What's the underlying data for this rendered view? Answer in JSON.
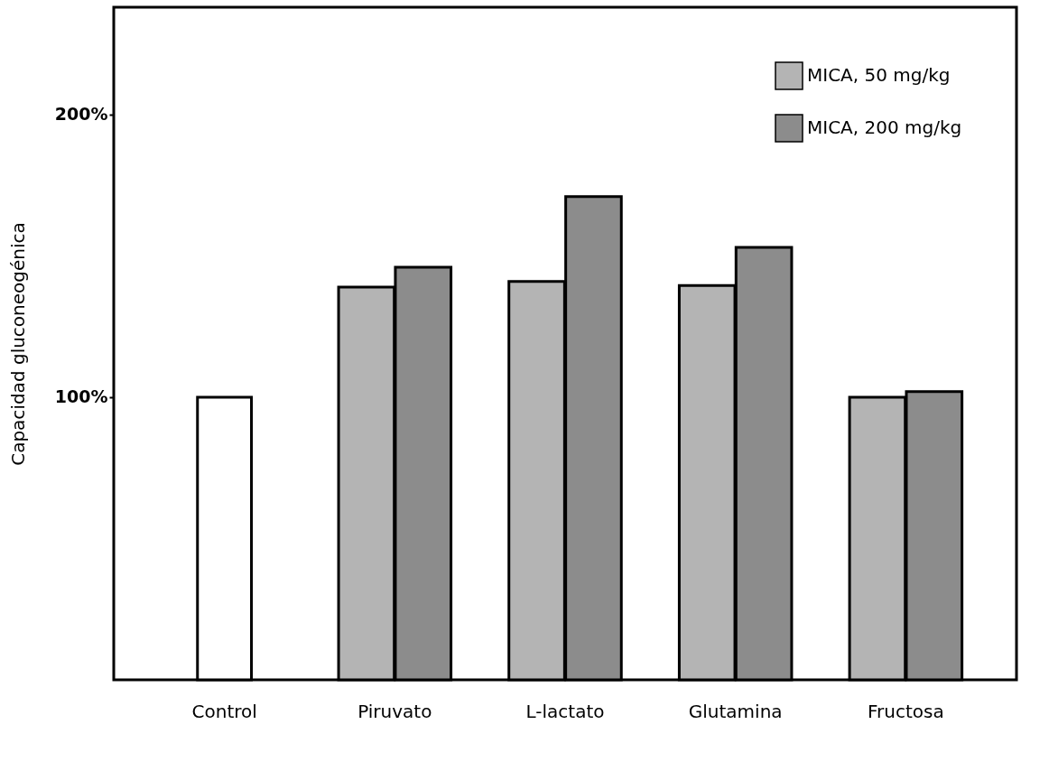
{
  "chart_data": {
    "type": "bar",
    "ylabel": "Capacidad gluconeogénica",
    "categories": [
      "Control",
      "Piruvato",
      "L-lactato",
      "Glutamina",
      "Fructosa"
    ],
    "series": [
      {
        "color": "#ffffff",
        "values": [
          100,
          null,
          null,
          null,
          null
        ]
      },
      {
        "name": "MICA, 50 mg/kg",
        "color": "#b4b4b4",
        "values": [
          null,
          139,
          141,
          139.5,
          100
        ]
      },
      {
        "name": "MICA, 200 mg/kg",
        "color": "#8c8c8c",
        "values": [
          null,
          146,
          171,
          153,
          102
        ]
      }
    ],
    "ylim": [
      0,
      238
    ],
    "yticks": [
      {
        "value": 100,
        "label": "100%"
      },
      {
        "value": 200,
        "label": "200%"
      }
    ],
    "grid": false,
    "legend": "top right"
  }
}
